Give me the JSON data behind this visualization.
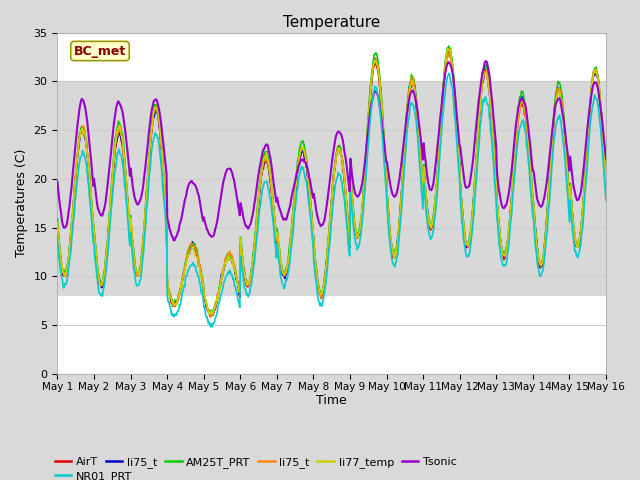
{
  "title": "Temperature",
  "xlabel": "Time",
  "ylabel": "Temperatures (C)",
  "ylim": [
    0,
    35
  ],
  "xlim": [
    0,
    15
  ],
  "yticks": [
    0,
    5,
    10,
    15,
    20,
    25,
    30,
    35
  ],
  "xtick_labels": [
    "May 1",
    "May 2",
    "May 3",
    "May 4",
    "May 5",
    "May 6",
    "May 7",
    "May 8",
    "May 9",
    "May 10",
    "May 11",
    "May 12",
    "May 13",
    "May 14",
    "May 15",
    "May 16"
  ],
  "xtick_positions": [
    0,
    1,
    2,
    3,
    4,
    5,
    6,
    7,
    8,
    9,
    10,
    11,
    12,
    13,
    14,
    15
  ],
  "shade_ymin": 8,
  "shade_ymax": 30,
  "legend_label": "BC_met",
  "legend_label_color": "#880000",
  "legend_box_facecolor": "#ffffcc",
  "legend_box_edgecolor": "#999900",
  "fig_bg_color": "#d9d9d9",
  "plot_bg_color": "#ffffff",
  "shade_color": "#d8d8d8",
  "grid_color": "#cccccc",
  "legend_entries": [
    "AirT",
    "li75_t",
    "AM25T_PRT",
    "li75_t",
    "li77_temp",
    "Tsonic",
    "NR01_PRT"
  ],
  "legend_colors": [
    "#dd0000",
    "#0000cc",
    "#00cc00",
    "#ff8800",
    "#cccc00",
    "#9900cc",
    "#00cccc"
  ],
  "line_widths": [
    1.2,
    1.2,
    1.2,
    1.2,
    1.2,
    1.5,
    1.2
  ],
  "day_bases": [
    10,
    9,
    10,
    7,
    6,
    9,
    10,
    8,
    14,
    12,
    15,
    13,
    12,
    11,
    13
  ],
  "day_amps": [
    15,
    16,
    17,
    6,
    6,
    13,
    13,
    15,
    18,
    18,
    18,
    18,
    16,
    18,
    18
  ],
  "tsonic_day_bases": [
    15,
    16,
    17,
    14,
    14,
    15,
    16,
    15,
    18,
    18,
    19,
    19,
    17,
    17,
    18
  ],
  "tsonic_day_amps": [
    13,
    12,
    11,
    6,
    7,
    8,
    6,
    10,
    11,
    11,
    13,
    13,
    11,
    11,
    12
  ]
}
